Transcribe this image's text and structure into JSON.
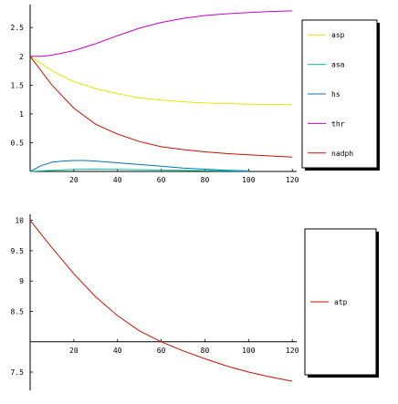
{
  "chart_data": [
    {
      "type": "line",
      "title": "",
      "xlabel": "",
      "ylabel": "",
      "xlim": [
        0,
        122
      ],
      "ylim": [
        0,
        2.9
      ],
      "xticks": [
        "20",
        "40",
        "60",
        "80",
        "100",
        "120"
      ],
      "yticks": [
        "0.5",
        "1",
        "1.5",
        "2",
        "2.5"
      ],
      "legend_position": "right",
      "series": [
        {
          "name": "asp",
          "color": "#e6e600",
          "x": [
            0,
            10,
            20,
            30,
            40,
            50,
            60,
            70,
            80,
            90,
            100,
            110,
            120
          ],
          "y": [
            2.0,
            1.75,
            1.56,
            1.44,
            1.35,
            1.28,
            1.24,
            1.21,
            1.19,
            1.18,
            1.17,
            1.165,
            1.16
          ]
        },
        {
          "name": "asa",
          "color": "#00cc99",
          "x": [
            0,
            10,
            20,
            30,
            40,
            50,
            60,
            70,
            80,
            90,
            100
          ],
          "y": [
            0.0,
            0.02,
            0.035,
            0.04,
            0.035,
            0.03,
            0.025,
            0.02,
            0.015,
            0.01,
            0.005
          ]
        },
        {
          "name": "hs",
          "color": "#0077bb",
          "x": [
            0,
            5,
            10,
            15,
            20,
            25,
            30,
            40,
            50,
            60,
            70,
            80,
            90,
            100
          ],
          "y": [
            0.0,
            0.1,
            0.16,
            0.18,
            0.19,
            0.19,
            0.18,
            0.15,
            0.12,
            0.09,
            0.06,
            0.04,
            0.02,
            0.01
          ]
        },
        {
          "name": "thr",
          "color": "#cc00cc",
          "x": [
            0,
            5,
            10,
            20,
            30,
            40,
            50,
            60,
            70,
            80,
            90,
            100,
            110,
            120
          ],
          "y": [
            2.0,
            2.0,
            2.02,
            2.1,
            2.22,
            2.36,
            2.49,
            2.59,
            2.66,
            2.71,
            2.74,
            2.76,
            2.78,
            2.79
          ]
        },
        {
          "name": "nadph",
          "color": "#cc1100",
          "x": [
            0,
            10,
            20,
            30,
            40,
            50,
            60,
            70,
            80,
            90,
            100,
            110,
            120
          ],
          "y": [
            2.0,
            1.5,
            1.1,
            0.82,
            0.65,
            0.52,
            0.43,
            0.38,
            0.34,
            0.31,
            0.29,
            0.27,
            0.25
          ]
        }
      ]
    },
    {
      "type": "line",
      "title": "",
      "xlabel": "",
      "ylabel": "",
      "xlim": [
        0,
        122
      ],
      "ylim": [
        7.2,
        10.1
      ],
      "x_axis_at_y": 8,
      "xticks": [
        "20",
        "40",
        "60",
        "80",
        "100",
        "120"
      ],
      "yticks": [
        "7.5",
        "8.5",
        "9",
        "9.5",
        "10"
      ],
      "legend_position": "right",
      "series": [
        {
          "name": "atp",
          "color": "#cc1100",
          "x": [
            0,
            10,
            20,
            30,
            40,
            50,
            60,
            70,
            80,
            90,
            100,
            110,
            120
          ],
          "y": [
            10.0,
            9.55,
            9.12,
            8.74,
            8.43,
            8.18,
            8.0,
            7.85,
            7.72,
            7.6,
            7.5,
            7.42,
            7.35
          ]
        }
      ]
    }
  ]
}
